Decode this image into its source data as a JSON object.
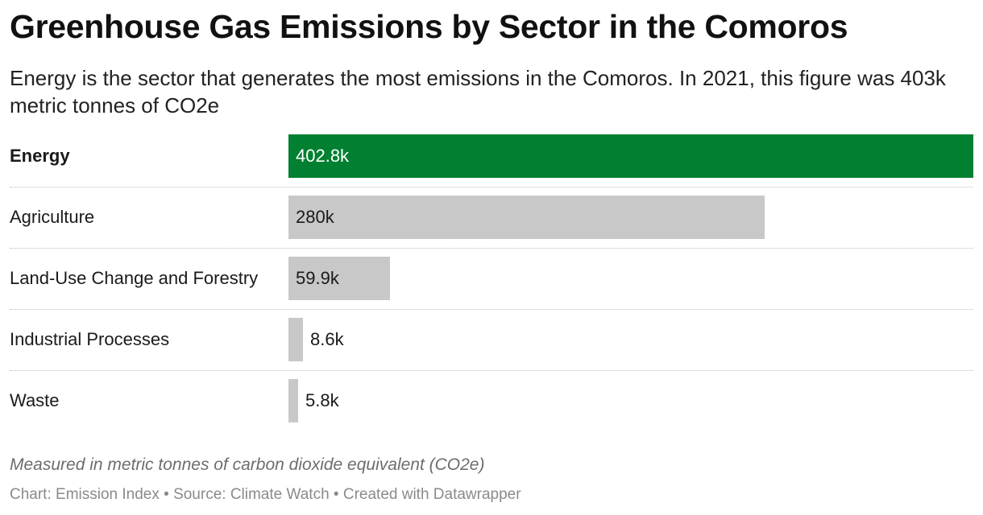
{
  "title": "Greenhouse Gas Emissions by Sector in the Comoros",
  "subtitle": "Energy is the sector that generates the most emissions in the Comoros. In 2021, this figure was 403k metric tonnes of CO2e",
  "note": "Measured in metric tonnes of carbon dioxide equivalent (CO2e)",
  "credits": "Chart: Emission Index • Source: Climate Watch • Created with Datawrapper",
  "colors": {
    "highlight": "#008030",
    "muted": "#c8c8c8"
  },
  "chart_data": {
    "type": "bar",
    "orientation": "horizontal",
    "categories": [
      "Energy",
      "Agriculture",
      "Land-Use Change and Forestry",
      "Industrial Processes",
      "Waste"
    ],
    "values": [
      402800,
      280000,
      59900,
      8600,
      5800
    ],
    "value_labels": [
      "402.8k",
      "280k",
      "59.9k",
      "8.6k",
      "5.8k"
    ],
    "highlighted": "Energy",
    "xlim": [
      0,
      402800
    ]
  }
}
